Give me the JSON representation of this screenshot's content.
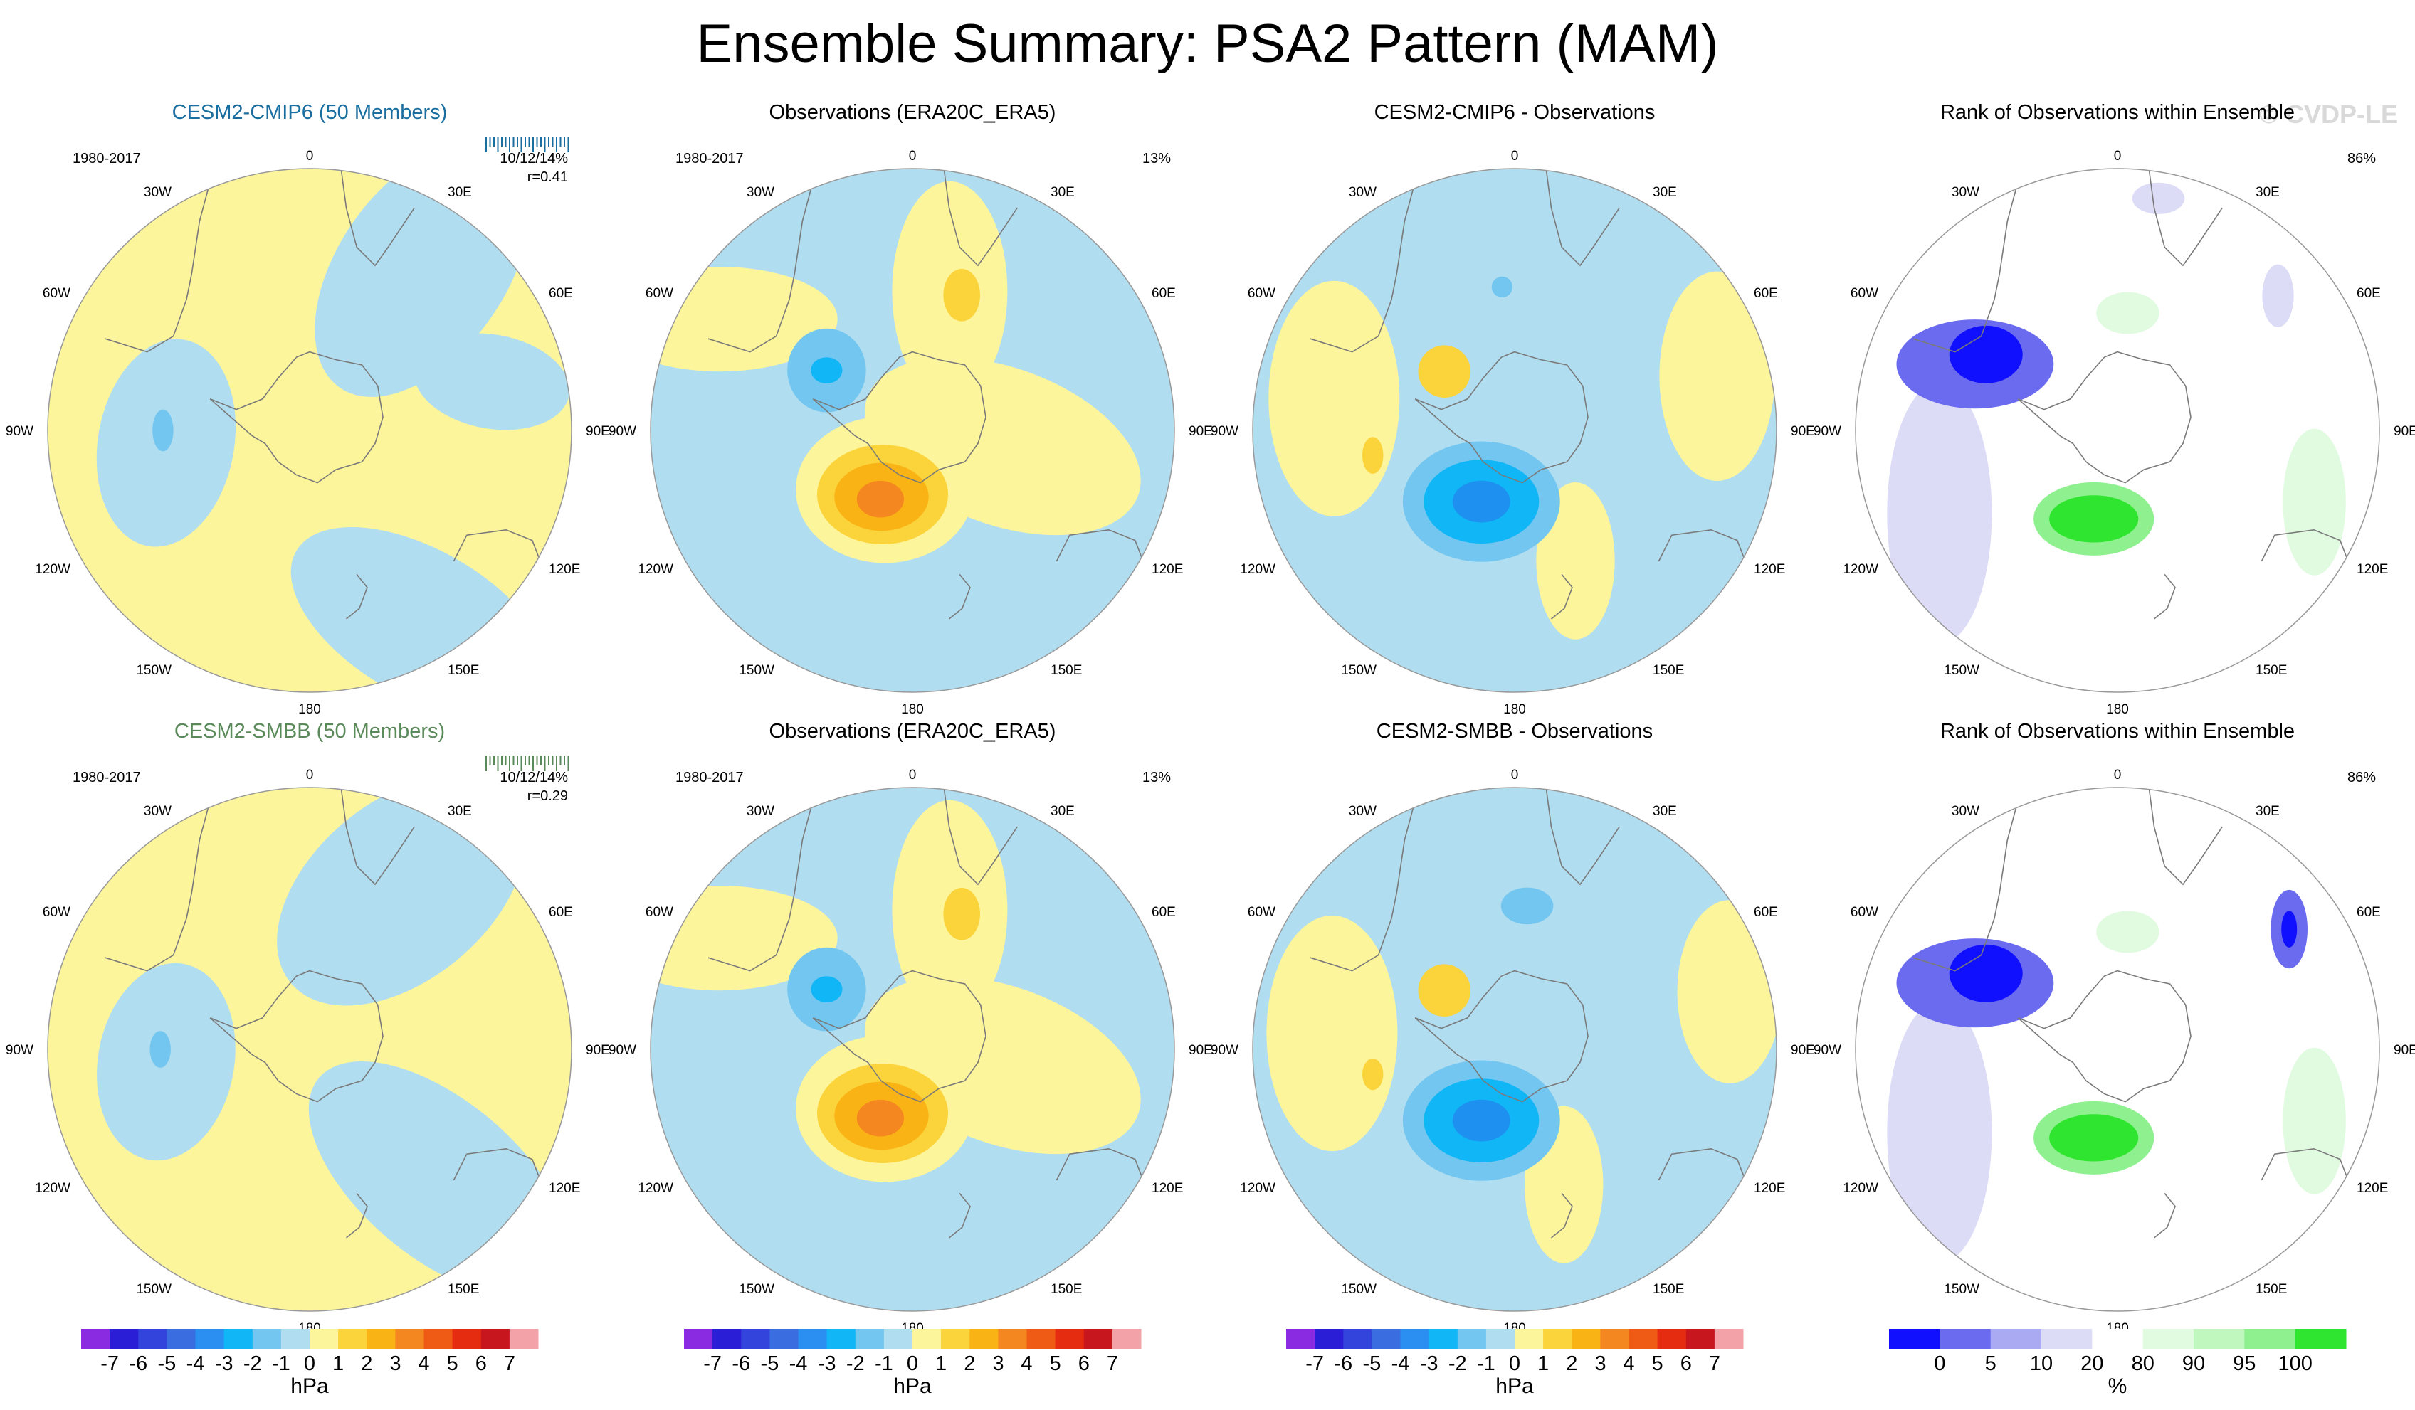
{
  "figure": {
    "title": "Ensemble Summary: PSA2 Pattern (MAM)",
    "watermark": "© CVDP-LE"
  },
  "colors": {
    "cmip_title": "#1a6ea0",
    "smbb_title": "#5a8a5a",
    "land": "#7a7a7a"
  },
  "chart_data": [
    {
      "type": "polar-map",
      "title": "CESM2-CMIP6 (50 Members)",
      "title_color": "#1a6ea0",
      "period": "1980-2017",
      "stat1": "10/12/14%",
      "stat2": "r=0.41",
      "scheme": "diverging",
      "base": "yellow",
      "patches": [
        {
          "lon": 0,
          "r": 0.0,
          "rx": 0.0,
          "ry": 0.0,
          "level": "-1"
        }
      ],
      "regions": [
        {
          "lon": 35,
          "r": 0.75,
          "rx": 0.55,
          "ry": 0.32,
          "rot": -55,
          "level": "-1"
        },
        {
          "lon": 75,
          "r": 0.72,
          "rx": 0.3,
          "ry": 0.18,
          "rot": 10,
          "level": "-1"
        },
        {
          "lon": -95,
          "r": 0.55,
          "rx": 0.26,
          "ry": 0.4,
          "rot": 10,
          "level": "-1"
        },
        {
          "lon": 150,
          "r": 0.85,
          "rx": 0.55,
          "ry": 0.28,
          "rot": 30,
          "level": "-1"
        },
        {
          "lon": -90,
          "r": 0.56,
          "rx": 0.04,
          "ry": 0.08,
          "rot": 0,
          "level": "-2"
        }
      ],
      "label_colors": "cmip"
    },
    {
      "type": "polar-map",
      "title": "Observations (ERA20C_ERA5)",
      "period": "1980-2017",
      "stat1": "13%",
      "stat2": "",
      "scheme": "diverging",
      "base": "blue",
      "regions": [
        {
          "lon": 15,
          "r": 0.55,
          "rx": 0.22,
          "ry": 0.42,
          "rot": 0,
          "level": "1"
        },
        {
          "lon": -60,
          "r": 0.85,
          "rx": 0.45,
          "ry": 0.2,
          "rot": 0,
          "level": "1"
        },
        {
          "lon": 100,
          "r": 0.35,
          "rx": 0.55,
          "ry": 0.3,
          "rot": 20,
          "level": "1"
        },
        {
          "lon": -155,
          "r": 0.25,
          "rx": 0.34,
          "ry": 0.28,
          "rot": 0,
          "level": "1"
        },
        {
          "lon": -155,
          "r": 0.27,
          "rx": 0.25,
          "ry": 0.19,
          "rot": 0,
          "level": "2"
        },
        {
          "lon": -155,
          "r": 0.28,
          "rx": 0.18,
          "ry": 0.13,
          "rot": 0,
          "level": "3"
        },
        {
          "lon": -155,
          "r": 0.29,
          "rx": 0.09,
          "ry": 0.07,
          "rot": 0,
          "level": "4"
        },
        {
          "lon": 20,
          "r": 0.55,
          "rx": 0.07,
          "ry": 0.1,
          "rot": 0,
          "level": "2"
        },
        {
          "lon": -55,
          "r": 0.4,
          "rx": 0.15,
          "ry": 0.16,
          "rot": 0,
          "level": "-2"
        },
        {
          "lon": -55,
          "r": 0.4,
          "rx": 0.06,
          "ry": 0.05,
          "rot": 0,
          "level": "-3"
        }
      ]
    },
    {
      "type": "polar-map",
      "title": "CESM2-CMIP6 - Observations",
      "period": "",
      "stat1": "",
      "stat2": "",
      "scheme": "diverging",
      "base": "blue",
      "regions": [
        {
          "lon": -80,
          "r": 0.7,
          "rx": 0.25,
          "ry": 0.45,
          "rot": 0,
          "level": "1"
        },
        {
          "lon": 75,
          "r": 0.8,
          "rx": 0.22,
          "ry": 0.4,
          "rot": 0,
          "level": "1"
        },
        {
          "lon": 155,
          "r": 0.55,
          "rx": 0.15,
          "ry": 0.3,
          "rot": 0,
          "level": "1"
        },
        {
          "lon": -50,
          "r": 0.35,
          "rx": 0.1,
          "ry": 0.1,
          "rot": 0,
          "level": "2"
        },
        {
          "lon": -100,
          "r": 0.55,
          "rx": 0.04,
          "ry": 0.07,
          "rot": 0,
          "level": "2"
        },
        {
          "lon": -155,
          "r": 0.3,
          "rx": 0.3,
          "ry": 0.23,
          "rot": 0,
          "level": "-2"
        },
        {
          "lon": -155,
          "r": 0.3,
          "rx": 0.22,
          "ry": 0.16,
          "rot": 0,
          "level": "-3"
        },
        {
          "lon": -155,
          "r": 0.3,
          "rx": 0.11,
          "ry": 0.08,
          "rot": 0,
          "level": "-4"
        },
        {
          "lon": -5,
          "r": 0.55,
          "rx": 0.04,
          "ry": 0.04,
          "rot": 0,
          "level": "-2"
        }
      ]
    },
    {
      "type": "polar-map",
      "title": "Rank of Observations within Ensemble",
      "period": "",
      "stat1": "86%",
      "stat2": "",
      "scheme": "rank",
      "base": "white",
      "regions": [
        {
          "lon": -115,
          "r": 0.75,
          "rx": 0.2,
          "ry": 0.5,
          "rot": 0,
          "level": "r20"
        },
        {
          "lon": -65,
          "r": 0.6,
          "rx": 0.3,
          "ry": 0.17,
          "rot": 0,
          "level": "r10"
        },
        {
          "lon": -60,
          "r": 0.58,
          "rx": 0.14,
          "ry": 0.11,
          "rot": 0,
          "level": "r0"
        },
        {
          "lon": 10,
          "r": 0.9,
          "rx": 0.1,
          "ry": 0.06,
          "rot": 0,
          "level": "r20"
        },
        {
          "lon": 50,
          "r": 0.8,
          "rx": 0.06,
          "ry": 0.12,
          "rot": 0,
          "level": "r20"
        },
        {
          "lon": -165,
          "r": 0.35,
          "rx": 0.23,
          "ry": 0.14,
          "rot": 0,
          "level": "r95"
        },
        {
          "lon": -165,
          "r": 0.35,
          "rx": 0.17,
          "ry": 0.09,
          "rot": 0,
          "level": "r100"
        },
        {
          "lon": 5,
          "r": 0.45,
          "rx": 0.12,
          "ry": 0.08,
          "rot": 0,
          "level": "r80"
        },
        {
          "lon": 110,
          "r": 0.8,
          "rx": 0.12,
          "ry": 0.28,
          "rot": 0,
          "level": "r80"
        }
      ]
    },
    {
      "type": "polar-map",
      "title": "CESM2-SMBB (50 Members)",
      "title_color": "#5a8a5a",
      "period": "1980-2017",
      "stat1": "10/12/14%",
      "stat2": "r=0.29",
      "scheme": "diverging",
      "base": "yellow",
      "regions": [
        {
          "lon": 30,
          "r": 0.7,
          "rx": 0.55,
          "ry": 0.34,
          "rot": -40,
          "level": "-1"
        },
        {
          "lon": -95,
          "r": 0.55,
          "rx": 0.26,
          "ry": 0.38,
          "rot": 10,
          "level": "-1"
        },
        {
          "lon": 135,
          "r": 0.7,
          "rx": 0.6,
          "ry": 0.3,
          "rot": 40,
          "level": "-1"
        },
        {
          "lon": -90,
          "r": 0.57,
          "rx": 0.04,
          "ry": 0.07,
          "rot": 0,
          "level": "-2"
        }
      ]
    },
    {
      "type": "polar-map",
      "title": "Observations (ERA20C_ERA5)",
      "period": "1980-2017",
      "stat1": "13%",
      "stat2": "",
      "scheme": "diverging",
      "base": "blue",
      "regions": [
        {
          "lon": 15,
          "r": 0.55,
          "rx": 0.22,
          "ry": 0.42,
          "rot": 0,
          "level": "1"
        },
        {
          "lon": -60,
          "r": 0.85,
          "rx": 0.45,
          "ry": 0.2,
          "rot": 0,
          "level": "1"
        },
        {
          "lon": 100,
          "r": 0.35,
          "rx": 0.55,
          "ry": 0.3,
          "rot": 20,
          "level": "1"
        },
        {
          "lon": -155,
          "r": 0.25,
          "rx": 0.34,
          "ry": 0.28,
          "rot": 0,
          "level": "1"
        },
        {
          "lon": -155,
          "r": 0.27,
          "rx": 0.25,
          "ry": 0.19,
          "rot": 0,
          "level": "2"
        },
        {
          "lon": -155,
          "r": 0.28,
          "rx": 0.18,
          "ry": 0.13,
          "rot": 0,
          "level": "3"
        },
        {
          "lon": -155,
          "r": 0.29,
          "rx": 0.09,
          "ry": 0.07,
          "rot": 0,
          "level": "4"
        },
        {
          "lon": 20,
          "r": 0.55,
          "rx": 0.07,
          "ry": 0.1,
          "rot": 0,
          "level": "2"
        },
        {
          "lon": -55,
          "r": 0.4,
          "rx": 0.15,
          "ry": 0.16,
          "rot": 0,
          "level": "-2"
        },
        {
          "lon": -55,
          "r": 0.4,
          "rx": 0.06,
          "ry": 0.05,
          "rot": 0,
          "level": "-3"
        }
      ]
    },
    {
      "type": "polar-map",
      "title": "CESM2-SMBB - Observations",
      "period": "",
      "stat1": "",
      "stat2": "",
      "scheme": "diverging",
      "base": "blue",
      "regions": [
        {
          "lon": -85,
          "r": 0.7,
          "rx": 0.25,
          "ry": 0.45,
          "rot": 0,
          "level": "1"
        },
        {
          "lon": 75,
          "r": 0.85,
          "rx": 0.2,
          "ry": 0.35,
          "rot": 0,
          "level": "1"
        },
        {
          "lon": 160,
          "r": 0.55,
          "rx": 0.15,
          "ry": 0.3,
          "rot": 0,
          "level": "1"
        },
        {
          "lon": -50,
          "r": 0.35,
          "rx": 0.1,
          "ry": 0.1,
          "rot": 0,
          "level": "2"
        },
        {
          "lon": -100,
          "r": 0.55,
          "rx": 0.04,
          "ry": 0.06,
          "rot": 0,
          "level": "2"
        },
        {
          "lon": 5,
          "r": 0.55,
          "rx": 0.1,
          "ry": 0.07,
          "rot": 0,
          "level": "-2"
        },
        {
          "lon": -155,
          "r": 0.3,
          "rx": 0.3,
          "ry": 0.23,
          "rot": 0,
          "level": "-2"
        },
        {
          "lon": -155,
          "r": 0.3,
          "rx": 0.22,
          "ry": 0.16,
          "rot": 0,
          "level": "-3"
        },
        {
          "lon": -155,
          "r": 0.3,
          "rx": 0.11,
          "ry": 0.08,
          "rot": 0,
          "level": "-4"
        }
      ]
    },
    {
      "type": "polar-map",
      "title": "Rank of Observations within Ensemble",
      "period": "",
      "stat1": "86%",
      "stat2": "",
      "scheme": "rank",
      "base": "white",
      "regions": [
        {
          "lon": -115,
          "r": 0.75,
          "rx": 0.2,
          "ry": 0.5,
          "rot": 0,
          "level": "r20"
        },
        {
          "lon": -65,
          "r": 0.6,
          "rx": 0.3,
          "ry": 0.17,
          "rot": 0,
          "level": "r10"
        },
        {
          "lon": -60,
          "r": 0.58,
          "rx": 0.14,
          "ry": 0.11,
          "rot": 0,
          "level": "r0"
        },
        {
          "lon": 55,
          "r": 0.8,
          "rx": 0.07,
          "ry": 0.15,
          "rot": 0,
          "level": "r10"
        },
        {
          "lon": 55,
          "r": 0.8,
          "rx": 0.03,
          "ry": 0.07,
          "rot": 0,
          "level": "r0"
        },
        {
          "lon": -165,
          "r": 0.35,
          "rx": 0.23,
          "ry": 0.14,
          "rot": 0,
          "level": "r95"
        },
        {
          "lon": -165,
          "r": 0.35,
          "rx": 0.17,
          "ry": 0.09,
          "rot": 0,
          "level": "r100"
        },
        {
          "lon": 5,
          "r": 0.45,
          "rx": 0.12,
          "ry": 0.08,
          "rot": 0,
          "level": "r80"
        },
        {
          "lon": 110,
          "r": 0.8,
          "rx": 0.12,
          "ry": 0.28,
          "rot": 0,
          "level": "r80"
        }
      ]
    }
  ],
  "map_labels": {
    "lon_labels": [
      "0",
      "30E",
      "60E",
      "90E",
      "120E",
      "150E",
      "180",
      "150W",
      "120W",
      "90W",
      "60W",
      "30W"
    ]
  },
  "colorbars": {
    "diverging": {
      "unit": "hPa",
      "labels": [
        "-7",
        "-6",
        "-5",
        "-4",
        "-3",
        "-2",
        "-1",
        "0",
        "1",
        "2",
        "3",
        "4",
        "5",
        "6",
        "7"
      ],
      "colors": [
        "#8a2be2",
        "#2a1fd6",
        "#3344dd",
        "#3a6ee0",
        "#2a8ff0",
        "#10b6f5",
        "#73c6ef",
        "#b0ddf0",
        "#fdf59c",
        "#fbd33a",
        "#f9b315",
        "#f4871f",
        "#ef5a14",
        "#e52c10",
        "#c8161e",
        "#f3a3a7"
      ]
    },
    "rank": {
      "unit": "%",
      "labels": [
        "0",
        "5",
        "10",
        "20",
        "80",
        "90",
        "95",
        "100"
      ],
      "colors": [
        "#1010ff",
        "#6b6bf0",
        "#aaaaf2",
        "#dcdcf7",
        "#ffffff",
        "#e0fbe0",
        "#bff7bf",
        "#8ef08e",
        "#2fe52f"
      ]
    }
  },
  "level_colors": {
    "-4": "#1e90f0",
    "-3": "#10b6f5",
    "-2": "#73c6ef",
    "-1": "#b0ddf0",
    "1": "#fdf59c",
    "2": "#fbd33a",
    "3": "#f9b315",
    "4": "#f4871f",
    "r0": "#1010ff",
    "r10": "#6b6bf0",
    "r20": "#dcdcf7",
    "r80": "#e0fbe0",
    "r95": "#8ef08e",
    "r100": "#2fe52f",
    "yellow": "#fdf59c",
    "blue": "#b0ddf0",
    "white": "#ffffff"
  }
}
